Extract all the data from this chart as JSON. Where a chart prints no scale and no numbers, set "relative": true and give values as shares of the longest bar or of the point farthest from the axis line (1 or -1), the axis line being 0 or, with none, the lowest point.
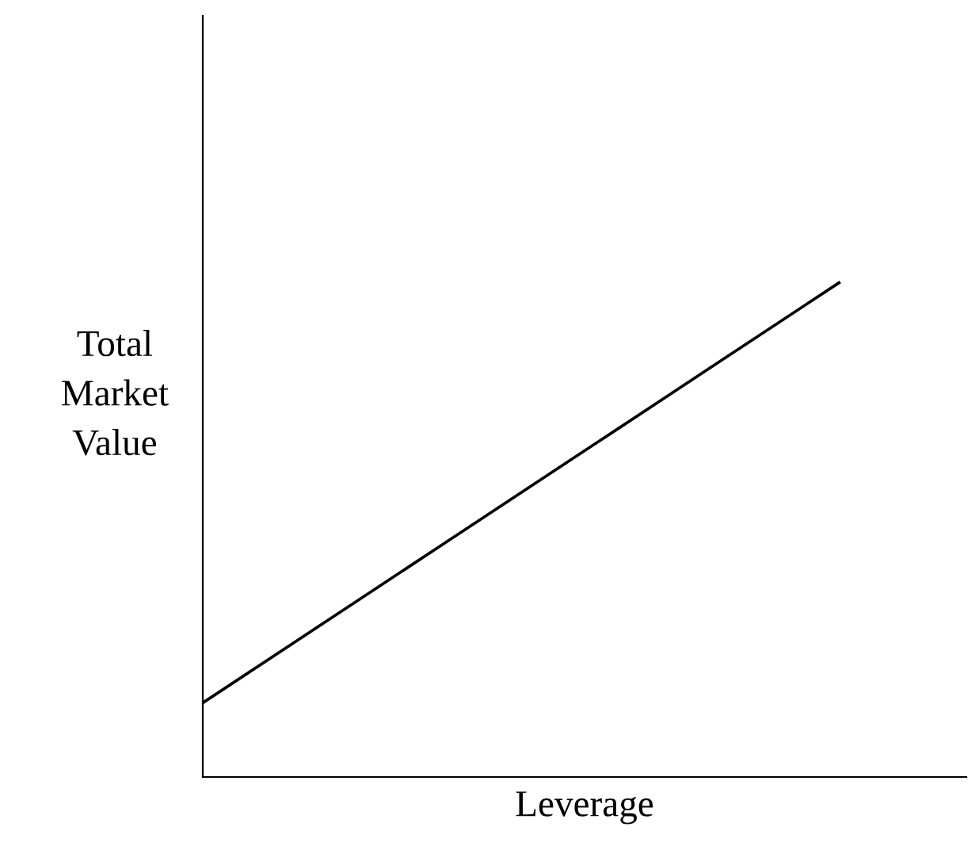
{
  "chart_data": {
    "type": "line",
    "relative": true,
    "xlabel": "Leverage",
    "ylabel": "Total\nMarket\nValue",
    "categories": [
      null,
      null,
      null,
      null,
      null,
      null,
      null
    ],
    "series": [
      {
        "color": "#000000",
        "values": [
          0.15,
          0.32,
          0.49,
          0.66,
          0.83,
          1.0,
          null
        ]
      }
    ],
    "legend": false,
    "marker": "none",
    "line_style": "solid",
    "tick_labels": false
  }
}
